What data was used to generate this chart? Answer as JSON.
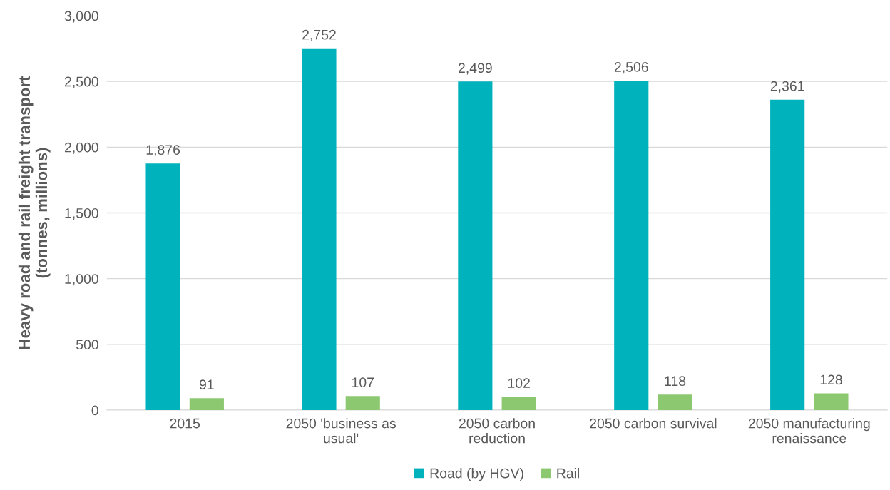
{
  "chart_data": {
    "type": "bar",
    "ylabel": "Heavy road and rail freight transport\n(tonnes, millions)",
    "categories": [
      "2015",
      "2050 'business as\nusual'",
      "2050 carbon\nreduction",
      "2050 carbon survival",
      "2050 manufacturing\nrenaissance"
    ],
    "series": [
      {
        "name": "Road (by HGV)",
        "color": "#00b2bb",
        "values": [
          1876,
          2752,
          2499,
          2506,
          2361
        ],
        "value_labels": [
          "1,876",
          "2,752",
          "2,499",
          "2,506",
          "2,361"
        ]
      },
      {
        "name": "Rail",
        "color": "#8cc870",
        "values": [
          91,
          107,
          102,
          118,
          128
        ],
        "value_labels": [
          "91",
          "107",
          "102",
          "118",
          "128"
        ]
      }
    ],
    "ylim": [
      0,
      3000
    ],
    "yticks": [
      {
        "value": 0,
        "label": "0"
      },
      {
        "value": 500,
        "label": "500"
      },
      {
        "value": 1000,
        "label": "1,000"
      },
      {
        "value": 1500,
        "label": "1,500"
      },
      {
        "value": 2000,
        "label": "2,000"
      },
      {
        "value": 2500,
        "label": "2,500"
      },
      {
        "value": 3000,
        "label": "3,000"
      }
    ],
    "grid": "y",
    "legend": "bottom"
  }
}
